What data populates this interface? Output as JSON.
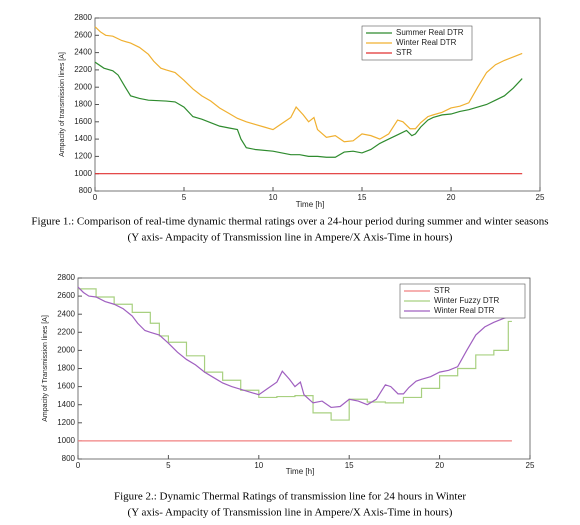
{
  "chart_data": [
    {
      "type": "line",
      "ylabel": "Ampacity of transmission lines [A]",
      "xlabel": "Time [h]",
      "caption": "Figure 1.: Comparison of real-time dynamic thermal ratings over  a 24-hour period during summer and winter seasons",
      "caption_note": "(Y axis- Ampacity of Transmission line in Ampere/X Axis-Time in hours)",
      "xlim": [
        0,
        25
      ],
      "xticks": [
        0,
        5,
        10,
        15,
        20,
        25
      ],
      "ylim": [
        800,
        2800
      ],
      "yticks": [
        800,
        1000,
        1200,
        1400,
        1600,
        1800,
        2000,
        2200,
        2400,
        2600,
        2800
      ],
      "grid": false,
      "legend": "upper right",
      "series": [
        {
          "name": "Summer Real DTR",
          "color": "#2e8b2e",
          "x": [
            0,
            0.5,
            1,
            1.3,
            1.7,
            2,
            2.5,
            3,
            4,
            4.5,
            5,
            5.5,
            6,
            6.5,
            7,
            7.5,
            8,
            8.2,
            8.5,
            9,
            10,
            10.5,
            11,
            11.5,
            12,
            12.5,
            13,
            13.5,
            14,
            14.5,
            15,
            15.5,
            16,
            16.5,
            17,
            17.5,
            17.8,
            18,
            18.3,
            18.7,
            19,
            19.5,
            20,
            20.5,
            21,
            21.5,
            22,
            22.5,
            23,
            23.5,
            24
          ],
          "values": [
            2290,
            2220,
            2190,
            2140,
            2000,
            1900,
            1870,
            1850,
            1840,
            1830,
            1770,
            1660,
            1630,
            1590,
            1550,
            1530,
            1510,
            1400,
            1300,
            1280,
            1260,
            1240,
            1220,
            1220,
            1200,
            1200,
            1190,
            1190,
            1250,
            1260,
            1240,
            1280,
            1350,
            1400,
            1450,
            1500,
            1440,
            1460,
            1540,
            1620,
            1650,
            1680,
            1690,
            1720,
            1740,
            1770,
            1800,
            1850,
            1900,
            1990,
            2100
          ]
        },
        {
          "name": "Winter Real DTR",
          "color": "#f0b030",
          "x": [
            0,
            0.3,
            0.6,
            1,
            1.5,
            2,
            2.5,
            3,
            3.3,
            3.7,
            4,
            4.5,
            5,
            5.5,
            6,
            6.5,
            7,
            7.5,
            8,
            8.5,
            9,
            9.5,
            10,
            10.5,
            11,
            11.3,
            11.7,
            12,
            12.3,
            12.5,
            13,
            13.5,
            14,
            14.5,
            15,
            15.5,
            16,
            16.5,
            17,
            17.3,
            17.7,
            18,
            18.3,
            18.7,
            19,
            19.5,
            20,
            20.5,
            21,
            21.5,
            22,
            22.5,
            23,
            23.5,
            24
          ],
          "values": [
            2700,
            2640,
            2600,
            2590,
            2540,
            2510,
            2460,
            2380,
            2300,
            2220,
            2200,
            2170,
            2080,
            1980,
            1900,
            1840,
            1760,
            1700,
            1640,
            1600,
            1570,
            1540,
            1510,
            1580,
            1650,
            1770,
            1680,
            1600,
            1650,
            1510,
            1420,
            1440,
            1370,
            1380,
            1460,
            1440,
            1400,
            1460,
            1620,
            1600,
            1520,
            1520,
            1590,
            1660,
            1680,
            1710,
            1760,
            1780,
            1820,
            2000,
            2170,
            2260,
            2310,
            2350,
            2390
          ]
        },
        {
          "name": "STR",
          "color": "#e03030",
          "x": [
            0,
            24
          ],
          "values": [
            1000,
            1000
          ]
        }
      ]
    },
    {
      "type": "line",
      "ylabel": "Ampacity of Transmission lines [A]",
      "xlabel": "Time [h]",
      "caption": "Figure 2.: Dynamic Thermal Ratings of transmission line for 24 hours in Winter",
      "caption_note": "(Y axis- Ampacity of Transmission line in Ampere/X Axis-Time in hours)",
      "xlim": [
        0,
        25
      ],
      "xticks": [
        0,
        5,
        10,
        15,
        20,
        25
      ],
      "ylim": [
        800,
        2800
      ],
      "yticks": [
        800,
        1000,
        1200,
        1400,
        1600,
        1800,
        2000,
        2200,
        2400,
        2600,
        2800
      ],
      "grid": false,
      "legend": "upper right",
      "series": [
        {
          "name": "STR",
          "color": "#f08080",
          "x": [
            0,
            24
          ],
          "values": [
            1000,
            1000
          ]
        },
        {
          "name": "Winter Fuzzy DTR",
          "color": "#a8d080",
          "step": true,
          "x": [
            0,
            1,
            2,
            3,
            4,
            4.5,
            5,
            6,
            7,
            8,
            9,
            10,
            11,
            12,
            13,
            14,
            15,
            16,
            17,
            18,
            19,
            20,
            21,
            22,
            23,
            23.8,
            24
          ],
          "values": [
            2680,
            2590,
            2510,
            2420,
            2300,
            2160,
            2090,
            1940,
            1760,
            1670,
            1560,
            1480,
            1490,
            1500,
            1310,
            1230,
            1460,
            1430,
            1420,
            1480,
            1580,
            1720,
            1800,
            1950,
            2000,
            2320,
            2320
          ]
        },
        {
          "name": "Winter Real DTR",
          "color": "#a060c0",
          "x": [
            0,
            0.3,
            0.6,
            1,
            1.5,
            2,
            2.5,
            3,
            3.3,
            3.7,
            4,
            4.5,
            5,
            5.5,
            6,
            6.5,
            7,
            7.5,
            8,
            8.5,
            9,
            9.5,
            10,
            10.5,
            11,
            11.3,
            11.7,
            12,
            12.3,
            12.5,
            13,
            13.5,
            14,
            14.5,
            15,
            15.5,
            16,
            16.5,
            17,
            17.3,
            17.7,
            18,
            18.3,
            18.7,
            19,
            19.5,
            20,
            20.5,
            21,
            21.5,
            22,
            22.5,
            23,
            23.5,
            24
          ],
          "values": [
            2700,
            2640,
            2600,
            2590,
            2540,
            2510,
            2460,
            2380,
            2300,
            2220,
            2200,
            2170,
            2080,
            1980,
            1900,
            1840,
            1760,
            1700,
            1640,
            1600,
            1570,
            1540,
            1510,
            1580,
            1650,
            1770,
            1680,
            1600,
            1650,
            1510,
            1420,
            1440,
            1370,
            1380,
            1460,
            1440,
            1400,
            1460,
            1620,
            1600,
            1520,
            1520,
            1590,
            1660,
            1680,
            1710,
            1760,
            1780,
            1820,
            2000,
            2170,
            2260,
            2310,
            2350,
            2390
          ]
        }
      ]
    }
  ]
}
